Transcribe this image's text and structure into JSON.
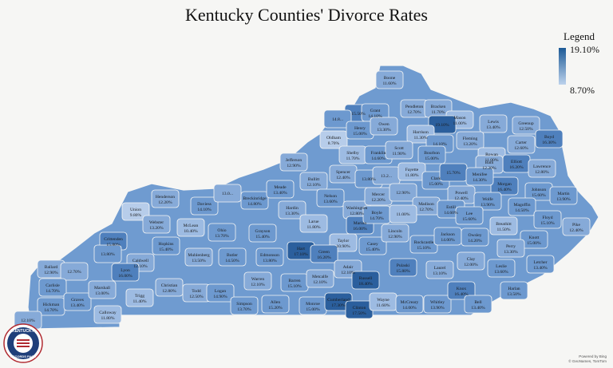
{
  "title": "Kentucky Counties' Divorce Rates",
  "legend": {
    "title": "Legend",
    "max": "19.10%",
    "min": "8.70%",
    "max_color": "#1d5a96",
    "min_color": "#bcd2ec"
  },
  "seal": {
    "top_text": "KENTUCKY",
    "bottom_text": "RECORDS PAGE"
  },
  "credits": {
    "line1": "Powered by Bing",
    "line2": "© GeoNames, TomTom"
  },
  "counties": [
    {
      "name": "Boone",
      "value": "11.60%",
      "tone": 2
    },
    {
      "name": "",
      "value": "15.50%",
      "tone": 4
    },
    {
      "name": "",
      "value": "14.8...",
      "tone": 3
    },
    {
      "name": "Grant",
      "value": "14.10%",
      "tone": 3
    },
    {
      "name": "Pendleton",
      "value": "12.70%",
      "tone": 2
    },
    {
      "name": "Bracken",
      "value": "11.70%",
      "tone": 2
    },
    {
      "name": "Mason",
      "value": "11.00%",
      "tone": 1
    },
    {
      "name": "",
      "value": "19.10%",
      "tone": 5
    },
    {
      "name": "Lewis",
      "value": "13.40%",
      "tone": 2
    },
    {
      "name": "Greenup",
      "value": "12.50%",
      "tone": 2
    },
    {
      "name": "Boyd",
      "value": "16.30%",
      "tone": 4
    },
    {
      "name": "Carter",
      "value": "12.60%",
      "tone": 2
    },
    {
      "name": "Oldham",
      "value": "8.70%",
      "tone": 0
    },
    {
      "name": "Henry",
      "value": "15.00%",
      "tone": 3
    },
    {
      "name": "Owen",
      "value": "13.30%",
      "tone": 2
    },
    {
      "name": "Harrison",
      "value": "11.30%",
      "tone": 1
    },
    {
      "name": "",
      "value": "14.10%",
      "tone": 3
    },
    {
      "name": "Fleming",
      "value": "13.20%",
      "tone": 2
    },
    {
      "name": "Rowan",
      "value": "11.00%",
      "tone": 1
    },
    {
      "name": "Elliott",
      "value": "16.20%",
      "tone": 4
    },
    {
      "name": "Lawrence",
      "value": "12.80%",
      "tone": 2
    },
    {
      "name": "Jefferson",
      "value": "12.90%",
      "tone": 2
    },
    {
      "name": "Shelby",
      "value": "11.70%",
      "tone": 1
    },
    {
      "name": "Franklin",
      "value": "14.60%",
      "tone": 3
    },
    {
      "name": "Scott",
      "value": "11.90%",
      "tone": 2
    },
    {
      "name": "Bourbon",
      "value": "15.00%",
      "tone": 3
    },
    {
      "name": "Bath",
      "value": "12.20%",
      "tone": 2
    },
    {
      "name": "Morgan",
      "value": "16.40%",
      "tone": 4
    },
    {
      "name": "Johnson",
      "value": "15.60%",
      "tone": 3
    },
    {
      "name": "Martin",
      "value": "13.90%",
      "tone": 3
    },
    {
      "name": "Bullitt",
      "value": "12.10%",
      "tone": 2
    },
    {
      "name": "Spencer",
      "value": "12.40%",
      "tone": 2
    },
    {
      "name": "",
      "value": "13.80%",
      "tone": 3
    },
    {
      "name": "",
      "value": "13.2...",
      "tone": 2
    },
    {
      "name": "Fayette",
      "value": "11.80%",
      "tone": 1
    },
    {
      "name": "Clark",
      "value": "15.00%",
      "tone": 3
    },
    {
      "name": "",
      "value": "15.70%",
      "tone": 4
    },
    {
      "name": "Menifee",
      "value": "14.30%",
      "tone": 3
    },
    {
      "name": "Magoffin",
      "value": "14.50%",
      "tone": 3
    },
    {
      "name": "Floyd",
      "value": "15.10%",
      "tone": 3
    },
    {
      "name": "Pike",
      "value": "12.40%",
      "tone": 2
    },
    {
      "name": "Henderson",
      "value": "12.20%",
      "tone": 2
    },
    {
      "name": "Daviess",
      "value": "14.10%",
      "tone": 3
    },
    {
      "name": "",
      "value": "13.0...",
      "tone": 2
    },
    {
      "name": "Breckinridge",
      "value": "14.80%",
      "tone": 3
    },
    {
      "name": "Meade",
      "value": "13.40%",
      "tone": 3
    },
    {
      "name": "Hardin",
      "value": "13.30%",
      "tone": 2
    },
    {
      "name": "Nelson",
      "value": "13.60%",
      "tone": 3
    },
    {
      "name": "Washington",
      "value": "12.80%",
      "tone": 2
    },
    {
      "name": "Mercer",
      "value": "12.20%",
      "tone": 2
    },
    {
      "name": "",
      "value": "12.90%",
      "tone": 2
    },
    {
      "name": "Madison",
      "value": "12.70%",
      "tone": 2
    },
    {
      "name": "Powell",
      "value": "12.40%",
      "tone": 2
    },
    {
      "name": "Wolfe",
      "value": "13.90%",
      "tone": 3
    },
    {
      "name": "Union",
      "value": "9.80%",
      "tone": 0
    },
    {
      "name": "Webster",
      "value": "13.20%",
      "tone": 2
    },
    {
      "name": "McLean",
      "value": "10.40%",
      "tone": 1
    },
    {
      "name": "Ohio",
      "value": "13.70%",
      "tone": 3
    },
    {
      "name": "Grayson",
      "value": "15.40%",
      "tone": 3
    },
    {
      "name": "Larue",
      "value": "11.80%",
      "tone": 1
    },
    {
      "name": "Marion",
      "value": "16.00%",
      "tone": 4
    },
    {
      "name": "Boyle",
      "value": "14.70%",
      "tone": 3
    },
    {
      "name": "",
      "value": "11.00%",
      "tone": 1
    },
    {
      "name": "Estill",
      "value": "14.60%",
      "tone": 3
    },
    {
      "name": "Lee",
      "value": "15.60%",
      "tone": 3
    },
    {
      "name": "Breathitt",
      "value": "11.50%",
      "tone": 1
    },
    {
      "name": "Knott",
      "value": "15.00%",
      "tone": 3
    },
    {
      "name": "Crittenden",
      "value": "15.80%",
      "tone": 4
    },
    {
      "name": "Hopkins",
      "value": "15.40%",
      "tone": 3
    },
    {
      "name": "Muhlenberg",
      "value": "13.50%",
      "tone": 2
    },
    {
      "name": "Butler",
      "value": "14.50%",
      "tone": 3
    },
    {
      "name": "Edmonson",
      "value": "13.80%",
      "tone": 3
    },
    {
      "name": "Hart",
      "value": "17.10%",
      "tone": 5
    },
    {
      "name": "Taylor",
      "value": "10.90%",
      "tone": 1
    },
    {
      "name": "Green",
      "value": "16.20%",
      "tone": 4
    },
    {
      "name": "Casey",
      "value": "15.40%",
      "tone": 3
    },
    {
      "name": "Lincoln",
      "value": "12.90%",
      "tone": 2
    },
    {
      "name": "Rockcastle",
      "value": "15.10%",
      "tone": 3
    },
    {
      "name": "Jackson",
      "value": "14.00%",
      "tone": 3
    },
    {
      "name": "Owsley",
      "value": "14.20%",
      "tone": 3
    },
    {
      "name": "Perry",
      "value": "13.30%",
      "tone": 2
    },
    {
      "name": "Letcher",
      "value": "13.40%",
      "tone": 3
    },
    {
      "name": "Ballard",
      "value": "12.90%",
      "tone": 2
    },
    {
      "name": "",
      "value": "13.80%",
      "tone": 3
    },
    {
      "name": "",
      "value": "12.70%",
      "tone": 2
    },
    {
      "name": "Caldwell",
      "value": "12.10%",
      "tone": 2
    },
    {
      "name": "Lyon",
      "value": "16.00%",
      "tone": 4
    },
    {
      "name": "Christian",
      "value": "12.80%",
      "tone": 2
    },
    {
      "name": "Todd",
      "value": "12.50%",
      "tone": 2
    },
    {
      "name": "Logan",
      "value": "14.90%",
      "tone": 3
    },
    {
      "name": "Warren",
      "value": "12.10%",
      "tone": 2
    },
    {
      "name": "Barren",
      "value": "15.10%",
      "tone": 3
    },
    {
      "name": "Metcalfe",
      "value": "12.10%",
      "tone": 2
    },
    {
      "name": "Adair",
      "value": "12.10%",
      "tone": 2
    },
    {
      "name": "Russell",
      "value": "18.40%",
      "tone": 5
    },
    {
      "name": "Pulaski",
      "value": "15.80%",
      "tone": 4
    },
    {
      "name": "Laurel",
      "value": "13.10%",
      "tone": 2
    },
    {
      "name": "Clay",
      "value": "12.00%",
      "tone": 2
    },
    {
      "name": "Leslie",
      "value": "13.60%",
      "tone": 3
    },
    {
      "name": "Harlan",
      "value": "13.50%",
      "tone": 3
    },
    {
      "name": "Carlisle",
      "value": "14.70%",
      "tone": 3
    },
    {
      "name": "Hickman",
      "value": "14.70%",
      "tone": 3
    },
    {
      "name": "Graves",
      "value": "13.40%",
      "tone": 3
    },
    {
      "name": "Marshall",
      "value": "13.00%",
      "tone": 2
    },
    {
      "name": "Trigg",
      "value": "11.40%",
      "tone": 1
    },
    {
      "name": "Calloway",
      "value": "11.80%",
      "tone": 1
    },
    {
      "name": "Simpson",
      "value": "13.70%",
      "tone": 3
    },
    {
      "name": "Allen",
      "value": "15.20%",
      "tone": 3
    },
    {
      "name": "Monroe",
      "value": "15.00%",
      "tone": 3
    },
    {
      "name": "Cumberland",
      "value": "17.30%",
      "tone": 5
    },
    {
      "name": "Clinton",
      "value": "17.50%",
      "tone": 5
    },
    {
      "name": "Wayne",
      "value": "11.60%",
      "tone": 1
    },
    {
      "name": "McCreary",
      "value": "14.00%",
      "tone": 3
    },
    {
      "name": "Whitley",
      "value": "13.90%",
      "tone": 3
    },
    {
      "name": "Knox",
      "value": "16.40%",
      "tone": 4
    },
    {
      "name": "Bell",
      "value": "13.40%",
      "tone": 3
    },
    {
      "name": "",
      "value": "12.10%",
      "tone": 2
    }
  ]
}
